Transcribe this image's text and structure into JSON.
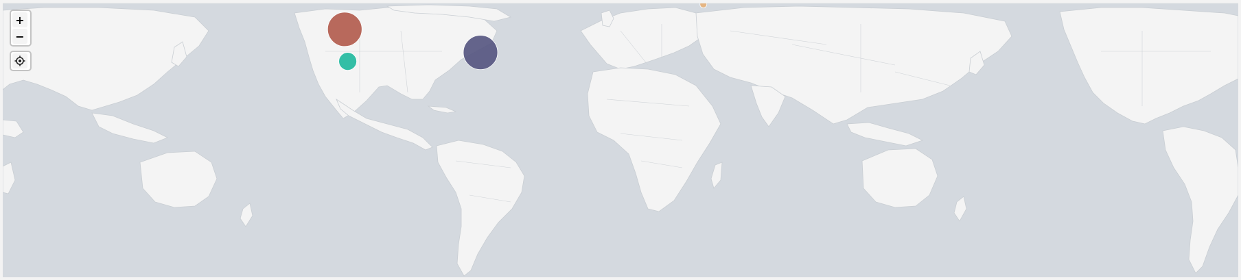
{
  "map": {
    "background_color": "#d4d9df",
    "land_color": "#f4f4f4",
    "border_color": "#c9ced3"
  },
  "controls": {
    "zoom_in_label": "+",
    "zoom_out_label": "−",
    "locate_icon": "crosshair-icon"
  },
  "markers": [
    {
      "name": "west-coast-large",
      "lon": -122.5,
      "lat": 46.0,
      "size": "large",
      "color": "#b25a4c"
    },
    {
      "name": "california",
      "lon": -121.5,
      "lat": 37.0,
      "size": "small",
      "color": "#1fb99e"
    },
    {
      "name": "east-coast",
      "lon": -76.5,
      "lat": 39.5,
      "size": "large",
      "color": "#555580"
    },
    {
      "name": "uk",
      "lon": -1.0,
      "lat": 53.0,
      "size": "tiny",
      "color": "#e7b27a"
    }
  ]
}
